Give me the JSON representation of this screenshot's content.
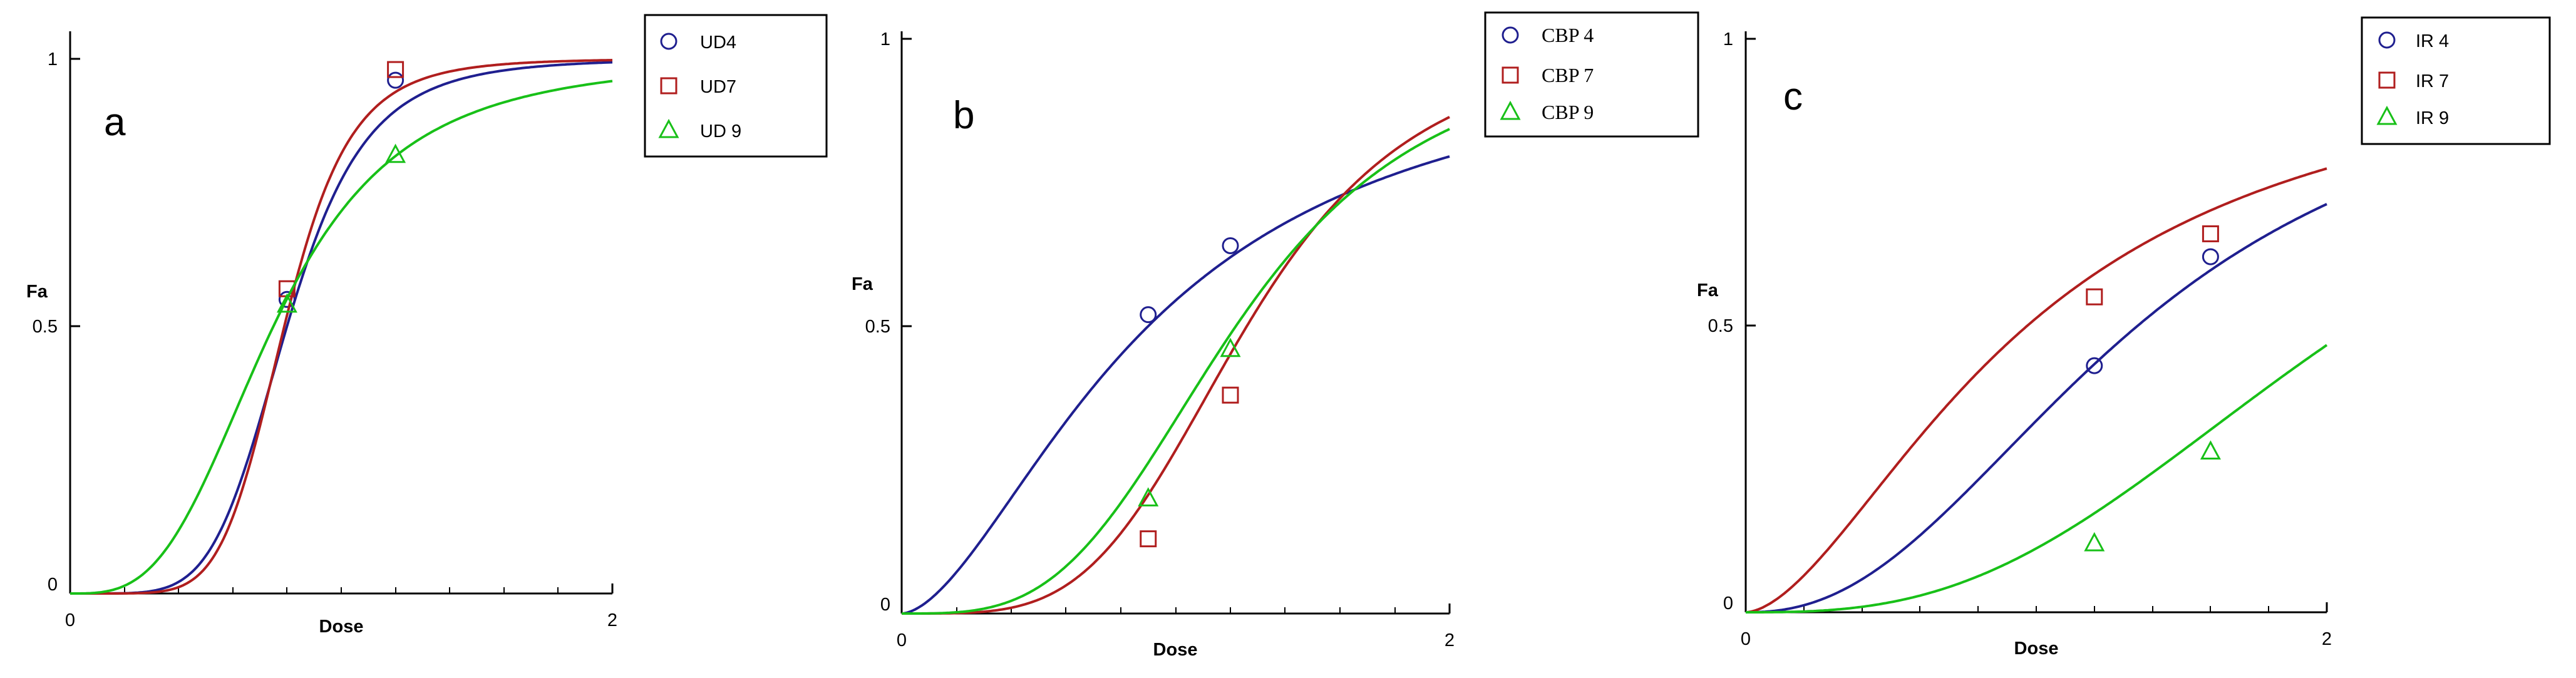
{
  "chart_data": [
    {
      "panel_label": "a",
      "type": "line",
      "xlabel": "Dose",
      "ylabel": "Fa",
      "xlim": [
        0,
        2
      ],
      "ylim": [
        0,
        1
      ],
      "x_ticks": [
        "0",
        "2"
      ],
      "y_ticks": [
        "0",
        "0.5",
        "1"
      ],
      "legend_position": "top-right",
      "series": [
        {
          "name": "UD4",
          "marker": "circle",
          "color": "#1f1f8f",
          "dm": 0.8,
          "m": 5.5,
          "markers": [
            [
              0.8,
              0.55
            ],
            [
              1.2,
              0.96
            ]
          ]
        },
        {
          "name": "UD7",
          "marker": "square",
          "color": "#b01e1e",
          "dm": 0.79,
          "m": 6.5,
          "markers": [
            [
              0.8,
              0.57
            ],
            [
              1.2,
              0.98
            ]
          ]
        },
        {
          "name": "UD 9",
          "marker": "triangle",
          "color": "#18c018",
          "dm": 0.75,
          "m": 3.2,
          "markers": [
            [
              0.8,
              0.54
            ],
            [
              1.2,
              0.82
            ]
          ]
        }
      ]
    },
    {
      "panel_label": "b",
      "type": "line",
      "xlabel": "Dose",
      "ylabel": "Fa",
      "xlim": [
        0,
        2
      ],
      "ylim": [
        0,
        1
      ],
      "x_ticks": [
        "0",
        "2"
      ],
      "y_ticks": [
        "0",
        "0.5",
        "1"
      ],
      "legend_position": "top-right",
      "series": [
        {
          "name": "CBP 4",
          "marker": "circle",
          "color": "#1f1f8f",
          "dm": 0.9,
          "m": 1.7,
          "markers": [
            [
              0.9,
              0.52
            ],
            [
              1.2,
              0.64
            ]
          ]
        },
        {
          "name": "CBP 7",
          "marker": "square",
          "color": "#b01e1e",
          "dm": 1.26,
          "m": 4.0,
          "markers": [
            [
              0.9,
              0.13
            ],
            [
              1.2,
              0.38
            ]
          ]
        },
        {
          "name": "CBP 9",
          "marker": "triangle",
          "color": "#18c018",
          "dm": 1.22,
          "m": 3.4,
          "markers": [
            [
              0.9,
              0.2
            ],
            [
              1.2,
              0.46
            ]
          ]
        }
      ]
    },
    {
      "panel_label": "c",
      "type": "line",
      "xlabel": "Dose",
      "ylabel": "Fa",
      "xlim": [
        0,
        2
      ],
      "ylim": [
        0,
        1
      ],
      "x_ticks": [
        "0",
        "2"
      ],
      "y_ticks": [
        "0",
        "0.5",
        "1"
      ],
      "legend_position": "top-right",
      "series": [
        {
          "name": "IR 4",
          "marker": "circle",
          "color": "#1f1f8f",
          "dm": 1.35,
          "m": 2.3,
          "markers": [
            [
              1.2,
              0.43
            ],
            [
              1.6,
              0.62
            ]
          ]
        },
        {
          "name": "IR 7",
          "marker": "square",
          "color": "#b01e1e",
          "dm": 0.97,
          "m": 1.7,
          "markers": [
            [
              1.2,
              0.55
            ],
            [
              1.6,
              0.66
            ]
          ]
        },
        {
          "name": "IR 9",
          "marker": "triangle",
          "color": "#18c018",
          "dm": 2.1,
          "m": 2.8,
          "markers": [
            [
              1.2,
              0.12
            ],
            [
              1.6,
              0.28
            ]
          ]
        }
      ]
    }
  ]
}
